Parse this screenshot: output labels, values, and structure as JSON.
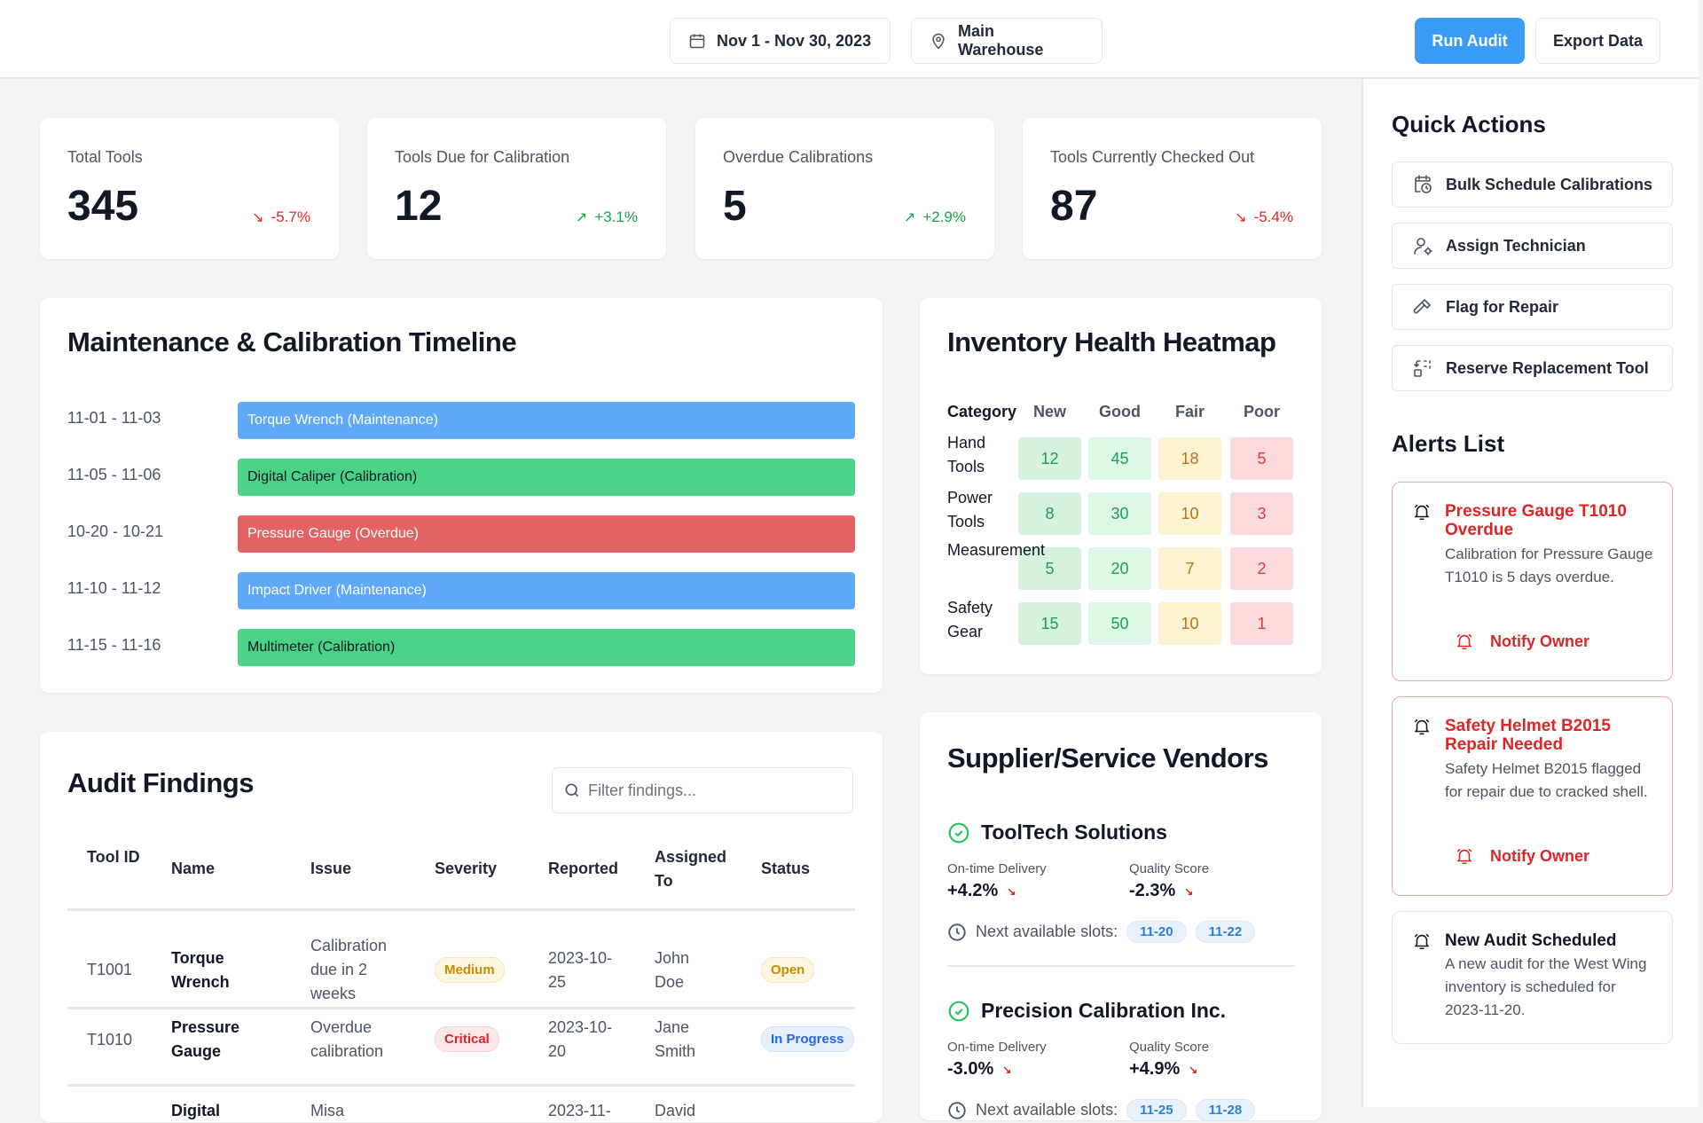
{
  "header": {
    "date_range": "Nov 1 - Nov 30, 2023",
    "location": "Main Warehouse",
    "run_audit": "Run Audit",
    "export_data": "Export Data"
  },
  "kpis": [
    {
      "label": "Total Tools",
      "value": "345",
      "delta": "-5.7%",
      "trend": "down"
    },
    {
      "label": "Tools Due for Calibration",
      "value": "12",
      "delta": "+3.1%",
      "trend": "up"
    },
    {
      "label": "Overdue Calibrations",
      "value": "5",
      "delta": "+2.9%",
      "trend": "up"
    },
    {
      "label": "Tools Currently Checked Out",
      "value": "87",
      "delta": "-5.4%",
      "trend": "down"
    }
  ],
  "timeline": {
    "title": "Maintenance & Calibration Timeline",
    "items": [
      {
        "dates": "11-01 - 11-03",
        "label": "Torque Wrench (Maintenance)",
        "type": "maintenance"
      },
      {
        "dates": "11-05 - 11-06",
        "label": "Digital Caliper (Calibration)",
        "type": "calibration"
      },
      {
        "dates": "10-20 - 10-21",
        "label": "Pressure Gauge (Overdue)",
        "type": "overdue"
      },
      {
        "dates": "11-10 - 11-12",
        "label": "Impact Driver (Maintenance)",
        "type": "maintenance"
      },
      {
        "dates": "11-15 - 11-16",
        "label": "Multimeter (Calibration)",
        "type": "calibration"
      }
    ],
    "colors": {
      "maintenance": "#60a9f8",
      "calibration": "#4ad386",
      "overdue": "#e36363"
    }
  },
  "heatmap": {
    "title": "Inventory Health Heatmap",
    "category_header": "Category",
    "columns": [
      "New",
      "Good",
      "Fair",
      "Poor"
    ],
    "rows": [
      {
        "category": "Hand Tools",
        "values": [
          12,
          45,
          18,
          5
        ]
      },
      {
        "category": "Power Tools",
        "values": [
          8,
          30,
          10,
          3
        ]
      },
      {
        "category": "Measurement",
        "values": [
          5,
          20,
          7,
          2
        ]
      },
      {
        "category": "Safety Gear",
        "values": [
          15,
          50,
          10,
          1
        ]
      }
    ]
  },
  "audit": {
    "title": "Audit Findings",
    "filter_placeholder": "Filter findings...",
    "columns": [
      "Tool ID",
      "Name",
      "Issue",
      "Severity",
      "Reported",
      "Assigned To",
      "Status"
    ],
    "rows": [
      {
        "id": "T1001",
        "name": "Torque Wrench",
        "issue": "Calibration due in 2 weeks",
        "severity": "Medium",
        "reported": "2023-10-25",
        "assigned": "John Doe",
        "status": "Open"
      },
      {
        "id": "T1010",
        "name": "Pressure Gauge",
        "issue": "Overdue calibration",
        "severity": "Critical",
        "reported": "2023-10-20",
        "assigned": "Jane Smith",
        "status": "In Progress"
      },
      {
        "name": "Digital",
        "issue": "Misa",
        "reported": "2023-11-",
        "assigned": "David"
      }
    ]
  },
  "vendors": {
    "title": "Supplier/Service Vendors",
    "ontime_label": "On-time Delivery",
    "quality_label": "Quality Score",
    "slots_label": "Next available slots:",
    "items": [
      {
        "name": "ToolTech Solutions",
        "ontime": "+4.2%",
        "quality": "-2.3%",
        "slots": [
          "11-20",
          "11-22"
        ]
      },
      {
        "name": "Precision Calibration Inc.",
        "ontime": "-3.0%",
        "quality": "+4.9%",
        "slots": [
          "11-25",
          "11-28"
        ]
      }
    ]
  },
  "quick_actions": {
    "title": "Quick Actions",
    "items": [
      {
        "label": "Bulk Schedule Calibrations",
        "icon": "calendar-clock-icon"
      },
      {
        "label": "Assign Technician",
        "icon": "user-cog-icon"
      },
      {
        "label": "Flag for Repair",
        "icon": "hammer-icon"
      },
      {
        "label": "Reserve Replacement Tool",
        "icon": "replace-icon"
      }
    ]
  },
  "alerts": {
    "title": "Alerts List",
    "notify_label": "Notify Owner",
    "items": [
      {
        "title": "Pressure Gauge T1010 Overdue",
        "body": "Calibration for Pressure Gauge T1010 is 5 days overdue.",
        "level": "critical"
      },
      {
        "title": "Safety Helmet B2015 Repair Needed",
        "body": "Safety Helmet B2015 flagged for repair due to cracked shell.",
        "level": "critical"
      },
      {
        "title": "New Audit Scheduled",
        "body": "A new audit for the West Wing inventory is scheduled for 2023-11-20.",
        "level": "info"
      }
    ]
  },
  "colors": {
    "accent": "#3b9cf5",
    "danger": "#dc2626",
    "success": "#16a34a"
  }
}
